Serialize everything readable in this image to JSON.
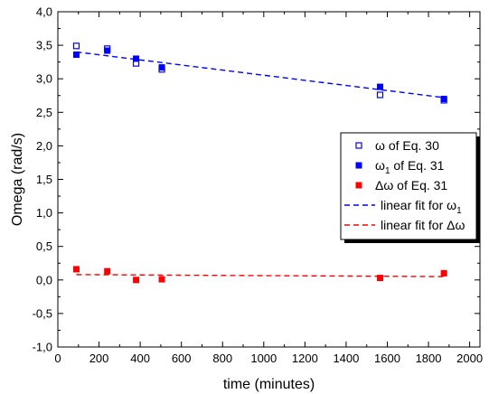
{
  "chart_data": {
    "type": "scatter",
    "xlabel": "time (minutes)",
    "ylabel": "Omega (rad/s)",
    "xlim": [
      0,
      2050
    ],
    "ylim": [
      -1.0,
      4.0
    ],
    "xticks": [
      0,
      200,
      400,
      600,
      800,
      1000,
      1200,
      1400,
      1600,
      1800,
      2000
    ],
    "xtick_labels": [
      "0",
      "200",
      "400",
      "600",
      "800",
      "1000",
      "1200",
      "1400",
      "1600",
      "1800",
      "2000"
    ],
    "yticks": [
      -1.0,
      -0.5,
      0.0,
      0.5,
      1.0,
      1.5,
      2.0,
      2.5,
      3.0,
      3.5,
      4.0
    ],
    "ytick_labels": [
      "-1,0",
      "-0,5",
      "0,0",
      "0,5",
      "1,0",
      "1,5",
      "2,0",
      "2,5",
      "3,0",
      "3,5",
      "4,0"
    ],
    "grid": false,
    "legend_position": "right",
    "series": [
      {
        "kind": "points",
        "marker": "open-square",
        "color": "#0000ff",
        "legend": {
          "main": "ω of Eq. 30",
          "sub": ""
        },
        "x": [
          90,
          240,
          380,
          505,
          1565,
          1875
        ],
        "y": [
          3.49,
          3.45,
          3.23,
          3.14,
          2.76,
          2.68
        ]
      },
      {
        "kind": "points",
        "marker": "filled-square",
        "color": "#0000ff",
        "legend": {
          "main": "ω",
          "sub": "1",
          "rest": " of Eq. 31"
        },
        "x": [
          90,
          240,
          380,
          505,
          1565,
          1875
        ],
        "y": [
          3.36,
          3.42,
          3.3,
          3.17,
          2.88,
          2.7
        ]
      },
      {
        "kind": "points",
        "marker": "filled-square",
        "color": "#ff0000",
        "legend": {
          "main": "Δω of Eq. 31",
          "sub": ""
        },
        "x": [
          90,
          240,
          380,
          505,
          1565,
          1875
        ],
        "y": [
          0.16,
          0.13,
          0.0,
          0.01,
          0.03,
          0.1
        ]
      },
      {
        "kind": "line",
        "style": "dashed",
        "color": "#0000ff",
        "legend": {
          "main": "linear fit for ω",
          "sub": "1"
        },
        "x": [
          90,
          1875
        ],
        "y": [
          3.4,
          2.72
        ]
      },
      {
        "kind": "line",
        "style": "dashed",
        "color": "#ff0000",
        "legend": {
          "main": "linear fit for Δω",
          "sub": ""
        },
        "x": [
          90,
          1875
        ],
        "y": [
          0.08,
          0.05
        ]
      }
    ]
  }
}
